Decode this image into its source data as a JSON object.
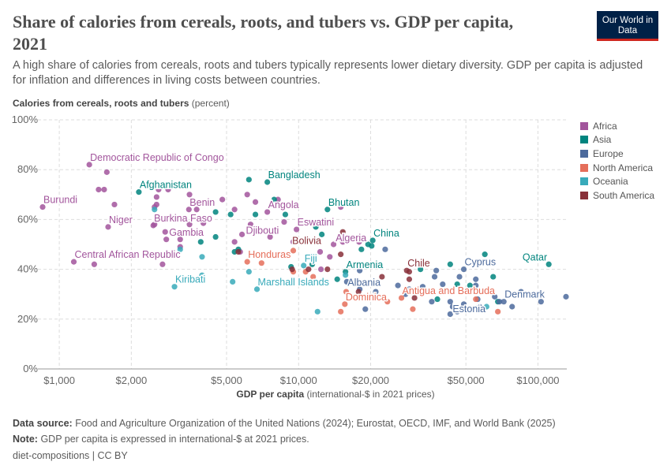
{
  "header": {
    "title": "Share of calories from cereals, roots, and tubers vs. GDP per capita, 2021",
    "subtitle": "A high share of calories from cereals, roots and tubers typically represents lower dietary diversity. GDP per capita is adjusted for inflation and differences in living costs between countries.",
    "logo": "Our World in Data"
  },
  "footer": {
    "source_label": "Data source:",
    "source": "Food and Agriculture Organization of the United Nations (2024); Eurostat, OECD, IMF, and World Bank (2025)",
    "note_label": "Note:",
    "note": "GDP per capita is expressed in international-$ at 2021 prices.",
    "credit": "diet-compositions | CC BY"
  },
  "chart_data": {
    "type": "scatter",
    "title": "Share of calories from cereals, roots, and tubers vs. GDP per capita, 2021",
    "xlabel": "GDP per capita",
    "xlabel_unit": "(international-$ in 2021 prices)",
    "ylabel": "Calories from cereals, roots and tubers",
    "ylabel_unit": "(percent)",
    "x_scale": "log",
    "xlim": [
      814,
      132000
    ],
    "ylim": [
      0,
      100
    ],
    "grid": true,
    "x_ticks": [
      {
        "v": 1000,
        "label": "$1,000"
      },
      {
        "v": 2000,
        "label": "$2,000"
      },
      {
        "v": 5000,
        "label": "$5,000"
      },
      {
        "v": 10000,
        "label": "$10,000"
      },
      {
        "v": 20000,
        "label": "$20,000"
      },
      {
        "v": 50000,
        "label": "$50,000"
      },
      {
        "v": 100000,
        "label": "$100,000"
      }
    ],
    "y_ticks": [
      {
        "v": 0,
        "label": "0%"
      },
      {
        "v": 20,
        "label": "20%"
      },
      {
        "v": 40,
        "label": "40%"
      },
      {
        "v": 60,
        "label": "60%"
      },
      {
        "v": 80,
        "label": "80%"
      },
      {
        "v": 100,
        "label": "100%"
      }
    ],
    "legend_position": "right",
    "series": [
      {
        "name": "Africa",
        "color": "#a2559c",
        "points": [
          {
            "x": 852,
            "y": 65,
            "label": "Burundi"
          },
          {
            "x": 1335,
            "y": 82,
            "label": "Democratic Republic of Congo"
          },
          {
            "x": 1600,
            "y": 57,
            "label": "Niger"
          },
          {
            "x": 1150,
            "y": 43,
            "label": "Central African Republic"
          },
          {
            "x": 2470,
            "y": 57.6,
            "label": "Burkina Faso"
          },
          {
            "x": 3480,
            "y": 64,
            "label": "Benin"
          },
          {
            "x": 2770,
            "y": 55,
            "label": "Gambia"
          },
          {
            "x": 7400,
            "y": 63,
            "label": "Angola"
          },
          {
            "x": 5800,
            "y": 54,
            "label": "Djibouti"
          },
          {
            "x": 9800,
            "y": 56,
            "label": "Eswatini"
          },
          {
            "x": 15300,
            "y": 51,
            "label": "Algeria"
          },
          {
            "x": 1580,
            "y": 79
          },
          {
            "x": 1460,
            "y": 72
          },
          {
            "x": 1540,
            "y": 72
          },
          {
            "x": 1700,
            "y": 66
          },
          {
            "x": 1400,
            "y": 42
          },
          {
            "x": 2600,
            "y": 72
          },
          {
            "x": 2550,
            "y": 69
          },
          {
            "x": 2850,
            "y": 72
          },
          {
            "x": 3500,
            "y": 70
          },
          {
            "x": 2550,
            "y": 66
          },
          {
            "x": 2500,
            "y": 65
          },
          {
            "x": 3750,
            "y": 64
          },
          {
            "x": 2500,
            "y": 58
          },
          {
            "x": 3500,
            "y": 58
          },
          {
            "x": 2800,
            "y": 52
          },
          {
            "x": 3200,
            "y": 52
          },
          {
            "x": 3200,
            "y": 49
          },
          {
            "x": 2700,
            "y": 42
          },
          {
            "x": 4800,
            "y": 68
          },
          {
            "x": 5400,
            "y": 64
          },
          {
            "x": 6100,
            "y": 70
          },
          {
            "x": 6600,
            "y": 67
          },
          {
            "x": 8200,
            "y": 68
          },
          {
            "x": 8700,
            "y": 59
          },
          {
            "x": 6300,
            "y": 58
          },
          {
            "x": 7600,
            "y": 53
          },
          {
            "x": 5400,
            "y": 51
          },
          {
            "x": 9500,
            "y": 51
          },
          {
            "x": 12300,
            "y": 47
          },
          {
            "x": 13500,
            "y": 45
          },
          {
            "x": 14000,
            "y": 50
          },
          {
            "x": 15000,
            "y": 65
          },
          {
            "x": 17900,
            "y": 51
          },
          {
            "x": 12400,
            "y": 40
          },
          {
            "x": 4000,
            "y": 58.5
          },
          {
            "x": 5700,
            "y": 47
          }
        ]
      },
      {
        "name": "Asia",
        "color": "#00847e",
        "points": [
          {
            "x": 2150,
            "y": 71,
            "label": "Afghanistan"
          },
          {
            "x": 7400,
            "y": 75,
            "label": "Bangladesh"
          },
          {
            "x": 13200,
            "y": 64,
            "label": "Bhutan"
          },
          {
            "x": 20400,
            "y": 51.6,
            "label": "China"
          },
          {
            "x": 15700,
            "y": 39,
            "label": "Armenia"
          },
          {
            "x": 111000,
            "y": 42,
            "label": "Qatar"
          },
          {
            "x": 6200,
            "y": 76
          },
          {
            "x": 7900,
            "y": 68
          },
          {
            "x": 8800,
            "y": 62
          },
          {
            "x": 6600,
            "y": 62
          },
          {
            "x": 5200,
            "y": 62
          },
          {
            "x": 4500,
            "y": 63
          },
          {
            "x": 4500,
            "y": 53
          },
          {
            "x": 5600,
            "y": 48
          },
          {
            "x": 5400,
            "y": 47
          },
          {
            "x": 3900,
            "y": 51
          },
          {
            "x": 11800,
            "y": 57
          },
          {
            "x": 12500,
            "y": 54
          },
          {
            "x": 19500,
            "y": 50
          },
          {
            "x": 20200,
            "y": 49.4
          },
          {
            "x": 18300,
            "y": 48
          },
          {
            "x": 9300,
            "y": 41
          },
          {
            "x": 11400,
            "y": 42
          },
          {
            "x": 14500,
            "y": 36
          },
          {
            "x": 32300,
            "y": 40
          },
          {
            "x": 60000,
            "y": 46
          },
          {
            "x": 43000,
            "y": 42
          },
          {
            "x": 65000,
            "y": 37
          },
          {
            "x": 46000,
            "y": 34
          },
          {
            "x": 52000,
            "y": 33.5
          },
          {
            "x": 35000,
            "y": 31
          },
          {
            "x": 38000,
            "y": 28
          },
          {
            "x": 68000,
            "y": 27
          }
        ]
      },
      {
        "name": "Europe",
        "color": "#4c6a9c",
        "points": [
          {
            "x": 15900,
            "y": 35,
            "label": "Albania"
          },
          {
            "x": 49000,
            "y": 40,
            "label": "Cyprus"
          },
          {
            "x": 44000,
            "y": 25,
            "label": "Estonia"
          },
          {
            "x": 72000,
            "y": 27,
            "label": "Denmark"
          },
          {
            "x": 23000,
            "y": 48
          },
          {
            "x": 37600,
            "y": 39.5
          },
          {
            "x": 37000,
            "y": 37
          },
          {
            "x": 47000,
            "y": 37
          },
          {
            "x": 55000,
            "y": 36
          },
          {
            "x": 55000,
            "y": 33.5
          },
          {
            "x": 40000,
            "y": 34
          },
          {
            "x": 26000,
            "y": 33.5
          },
          {
            "x": 29000,
            "y": 32
          },
          {
            "x": 33000,
            "y": 33
          },
          {
            "x": 36000,
            "y": 27
          },
          {
            "x": 43000,
            "y": 27
          },
          {
            "x": 49000,
            "y": 26
          },
          {
            "x": 56000,
            "y": 28
          },
          {
            "x": 66000,
            "y": 29
          },
          {
            "x": 85000,
            "y": 31
          },
          {
            "x": 103000,
            "y": 27
          },
          {
            "x": 131000,
            "y": 29
          },
          {
            "x": 78000,
            "y": 25
          },
          {
            "x": 43000,
            "y": 22
          },
          {
            "x": 46000,
            "y": 23
          },
          {
            "x": 57000,
            "y": 25
          },
          {
            "x": 19000,
            "y": 24
          },
          {
            "x": 21000,
            "y": 31
          },
          {
            "x": 18000,
            "y": 32
          },
          {
            "x": 18000,
            "y": 39.5
          },
          {
            "x": 28000,
            "y": 30
          },
          {
            "x": 69000,
            "y": 27
          }
        ]
      },
      {
        "name": "North America",
        "color": "#e56e5a",
        "points": [
          {
            "x": 6100,
            "y": 43,
            "label": "Honduras"
          },
          {
            "x": 15600,
            "y": 26,
            "label": "Dominica"
          },
          {
            "x": 26900,
            "y": 28.5,
            "label": "Antigua and Barbuda"
          },
          {
            "x": 7000,
            "y": 42.5
          },
          {
            "x": 9500,
            "y": 39
          },
          {
            "x": 10700,
            "y": 39
          },
          {
            "x": 9500,
            "y": 47.5
          },
          {
            "x": 11500,
            "y": 37
          },
          {
            "x": 15000,
            "y": 23
          },
          {
            "x": 15800,
            "y": 31
          },
          {
            "x": 23500,
            "y": 27
          },
          {
            "x": 30000,
            "y": 24
          },
          {
            "x": 55000,
            "y": 28
          },
          {
            "x": 68000,
            "y": 23
          }
        ]
      },
      {
        "name": "Oceania",
        "color": "#38aaba",
        "points": [
          {
            "x": 3030,
            "y": 33,
            "label": "Kiribati"
          },
          {
            "x": 6700,
            "y": 32,
            "label": "Marshall Islands"
          },
          {
            "x": 10500,
            "y": 41.5,
            "label": "Fiji"
          },
          {
            "x": 2500,
            "y": 64
          },
          {
            "x": 3950,
            "y": 45
          },
          {
            "x": 3950,
            "y": 37.6
          },
          {
            "x": 5300,
            "y": 35
          },
          {
            "x": 6200,
            "y": 39
          },
          {
            "x": 12000,
            "y": 23
          },
          {
            "x": 15700,
            "y": 37.7
          },
          {
            "x": 61000,
            "y": 25
          },
          {
            "x": 3200,
            "y": 48
          }
        ]
      },
      {
        "name": "South America",
        "color": "#883039",
        "points": [
          {
            "x": 9400,
            "y": 40,
            "label": "Bolivia"
          },
          {
            "x": 28300,
            "y": 39.5,
            "label": "Chile"
          },
          {
            "x": 11000,
            "y": 40
          },
          {
            "x": 15000,
            "y": 46
          },
          {
            "x": 15300,
            "y": 55
          },
          {
            "x": 22300,
            "y": 37
          },
          {
            "x": 29000,
            "y": 36
          },
          {
            "x": 29000,
            "y": 39
          },
          {
            "x": 17800,
            "y": 31
          },
          {
            "x": 30500,
            "y": 28.5
          },
          {
            "x": 13200,
            "y": 40
          },
          {
            "x": 5600,
            "y": 47
          }
        ]
      }
    ]
  }
}
